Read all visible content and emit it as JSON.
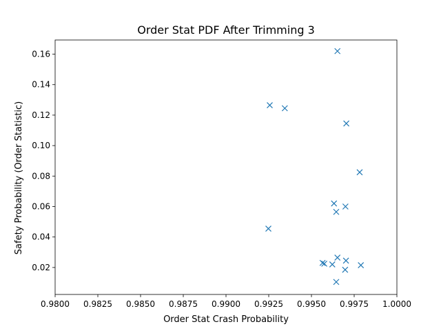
{
  "chart_data": {
    "type": "scatter",
    "title": "Order Stat PDF After Trimming 3",
    "xlabel": "Order Stat Crash Probability",
    "ylabel": "Safety Probability (Order Statistic)",
    "xlim": [
      0.98,
      1.0
    ],
    "ylim": [
      0.0023,
      0.1693
    ],
    "xticks": [
      0.98,
      0.9825,
      0.985,
      0.9875,
      0.99,
      0.9925,
      0.995,
      0.9975,
      1.0
    ],
    "xtick_labels": [
      "0.9800",
      "0.9825",
      "0.9850",
      "0.9875",
      "0.9900",
      "0.9925",
      "0.9950",
      "0.9975",
      "1.0000"
    ],
    "yticks": [
      0.02,
      0.04,
      0.06,
      0.08,
      0.1,
      0.12,
      0.14,
      0.16
    ],
    "ytick_labels": [
      "0.02",
      "0.04",
      "0.06",
      "0.08",
      "0.10",
      "0.12",
      "0.14",
      "0.16"
    ],
    "marker": "x",
    "color": "#1f77b4",
    "grid": false,
    "x": [
      0.99652,
      0.99256,
      0.99344,
      0.99704,
      0.99782,
      0.99632,
      0.99699,
      0.99645,
      0.99248,
      0.99652,
      0.99702,
      0.99565,
      0.99575,
      0.99622,
      0.99789,
      0.99697,
      0.99645
    ],
    "y": [
      0.162,
      0.1265,
      0.1245,
      0.1145,
      0.0825,
      0.062,
      0.06,
      0.0565,
      0.0455,
      0.0265,
      0.0245,
      0.023,
      0.0225,
      0.022,
      0.0215,
      0.0185,
      0.0105
    ]
  }
}
